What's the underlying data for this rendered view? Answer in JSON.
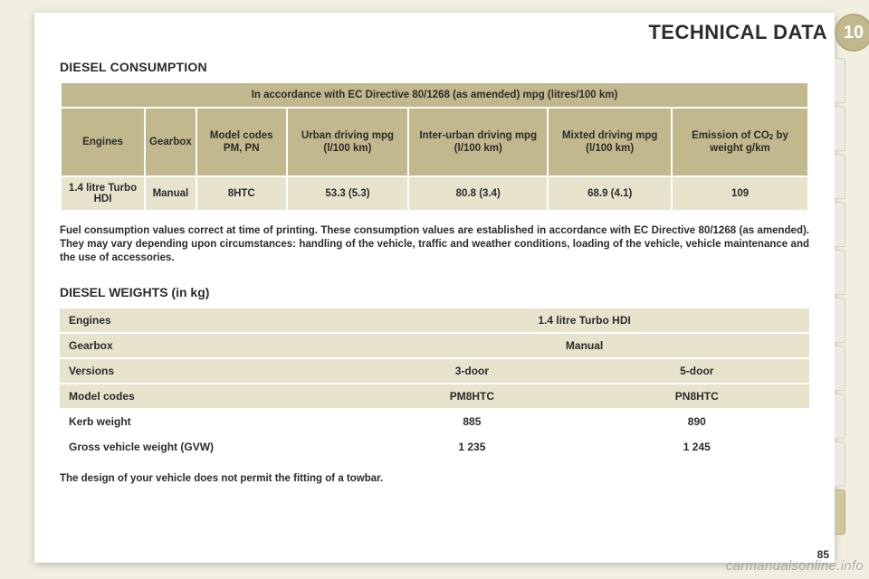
{
  "header": {
    "title": "TECHNICAL DATA",
    "badge": "10"
  },
  "section1": {
    "title": "DIESEL CONSUMPTION",
    "caption": "In accordance with EC Directive 80/1268 (as amended) mpg (litres/100 km)",
    "columns": {
      "c0": "Engines",
      "c1": "Gearbox",
      "c2": "Model codes PM, PN",
      "c3": "Urban driving mpg (l/100 km)",
      "c4": "Inter-urban driving mpg (l/100 km)",
      "c5": "Mixted driving mpg (l/100 km)",
      "c6_a": "Emission of CO",
      "c6_b": " by weight g/km"
    },
    "row": {
      "engine": "1.4 litre Turbo HDI",
      "gearbox": "Manual",
      "code": "8HTC",
      "urban": "53.3 (5.3)",
      "inter": "80.8 (3.4)",
      "mixed": "68.9 (4.1)",
      "co2": "109"
    },
    "note": "Fuel consumption values correct at time of printing. These consumption values are established in accordance with EC Directive 80/1268 (as amended). They may vary depending upon circumstances: handling of the vehicle, traffic and weather conditions, loading of the vehicle, vehicle maintenance and the use of accessories."
  },
  "section2": {
    "title": "DIESEL WEIGHTS (in kg)",
    "rows": {
      "r0": {
        "label": "Engines",
        "v1": "1.4 litre Turbo HDI",
        "span": true
      },
      "r1": {
        "label": "Gearbox",
        "v1": "Manual",
        "span": true
      },
      "r2": {
        "label": "Versions",
        "v1": "3-door",
        "v2": "5-door"
      },
      "r3": {
        "label": "Model codes",
        "v1": "PM8HTC",
        "v2": "PN8HTC"
      },
      "r4": {
        "label": "Kerb weight",
        "v1": "885",
        "v2": "890"
      },
      "r5": {
        "label": "Gross vehicle weight (GVW)",
        "v1": "1 235",
        "v2": "1 245"
      }
    },
    "footnote": "The design of your vehicle does not permit the fitting of a towbar."
  },
  "watermark": "carmanualsonline.info",
  "pagenum": "85",
  "colors": {
    "page_bg": "#f2efe2",
    "card_bg": "#ffffff",
    "khaki_dark": "#c1b88d",
    "khaki_light": "#e7e3cd",
    "text": "#2b2b2b"
  },
  "typography": {
    "body_fontsize": 11.5,
    "title_fontsize": 14,
    "header_fontsize": 22
  },
  "tabs": {
    "count": 10,
    "active_index": 9
  }
}
